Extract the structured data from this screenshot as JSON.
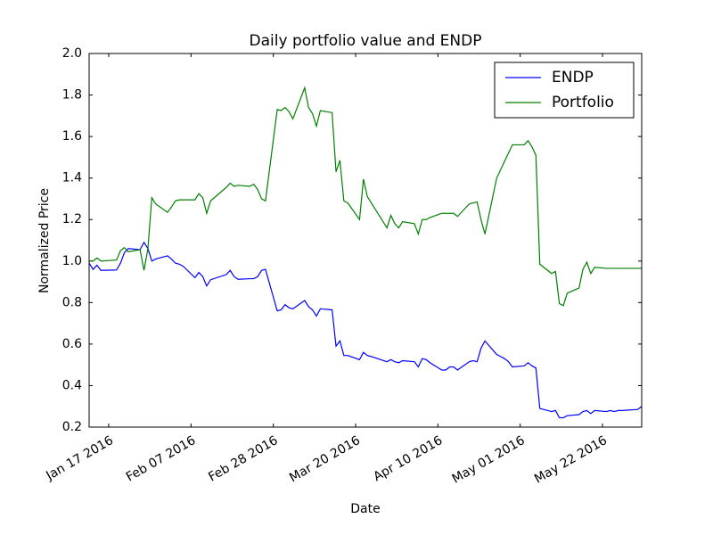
{
  "chart_data": {
    "type": "line",
    "title": "Daily portfolio value and ENDP",
    "x_label": "Date",
    "y_label": "Normalized Price",
    "x": [
      "2016-01-12",
      "2016-01-13",
      "2016-01-14",
      "2016-01-15",
      "2016-01-19",
      "2016-01-20",
      "2016-01-21",
      "2016-01-22",
      "2016-01-25",
      "2016-01-26",
      "2016-01-27",
      "2016-01-28",
      "2016-01-29",
      "2016-02-01",
      "2016-02-02",
      "2016-02-03",
      "2016-02-04",
      "2016-02-05",
      "2016-02-08",
      "2016-02-09",
      "2016-02-10",
      "2016-02-11",
      "2016-02-12",
      "2016-02-16",
      "2016-02-17",
      "2016-02-18",
      "2016-02-19",
      "2016-02-22",
      "2016-02-23",
      "2016-02-24",
      "2016-02-25",
      "2016-02-26",
      "2016-02-29",
      "2016-03-01",
      "2016-03-02",
      "2016-03-03",
      "2016-03-04",
      "2016-03-07",
      "2016-03-08",
      "2016-03-09",
      "2016-03-10",
      "2016-03-11",
      "2016-03-14",
      "2016-03-15",
      "2016-03-16",
      "2016-03-17",
      "2016-03-18",
      "2016-03-21",
      "2016-03-22",
      "2016-03-23",
      "2016-03-24",
      "2016-03-28",
      "2016-03-29",
      "2016-03-30",
      "2016-03-31",
      "2016-04-01",
      "2016-04-04",
      "2016-04-05",
      "2016-04-06",
      "2016-04-07",
      "2016-04-08",
      "2016-04-11",
      "2016-04-12",
      "2016-04-13",
      "2016-04-14",
      "2016-04-15",
      "2016-04-18",
      "2016-04-19",
      "2016-04-20",
      "2016-04-21",
      "2016-04-22",
      "2016-04-25",
      "2016-04-26",
      "2016-04-27",
      "2016-04-28",
      "2016-04-29",
      "2016-05-02",
      "2016-05-03",
      "2016-05-04",
      "2016-05-05",
      "2016-05-06",
      "2016-05-09",
      "2016-05-10",
      "2016-05-11",
      "2016-05-12",
      "2016-05-13",
      "2016-05-16",
      "2016-05-17",
      "2016-05-18",
      "2016-05-19",
      "2016-05-20",
      "2016-05-23",
      "2016-05-24",
      "2016-05-25",
      "2016-05-26",
      "2016-05-27",
      "2016-05-31",
      "2016-06-01"
    ],
    "series": [
      {
        "name": "ENDP",
        "color": "#0000ff",
        "values": [
          0.99,
          0.96,
          0.98,
          0.955,
          0.957,
          0.99,
          1.04,
          1.06,
          1.055,
          1.09,
          1.06,
          1.0,
          1.01,
          1.025,
          1.01,
          0.99,
          0.985,
          0.975,
          0.92,
          0.945,
          0.925,
          0.88,
          0.91,
          0.935,
          0.955,
          0.925,
          0.912,
          0.915,
          0.915,
          0.925,
          0.955,
          0.96,
          0.76,
          0.765,
          0.79,
          0.775,
          0.77,
          0.81,
          0.78,
          0.765,
          0.735,
          0.77,
          0.765,
          0.59,
          0.615,
          0.545,
          0.545,
          0.525,
          0.56,
          0.545,
          0.54,
          0.515,
          0.525,
          0.515,
          0.51,
          0.52,
          0.515,
          0.49,
          0.53,
          0.525,
          0.51,
          0.475,
          0.475,
          0.49,
          0.49,
          0.475,
          0.515,
          0.52,
          0.515,
          0.58,
          0.615,
          0.55,
          0.54,
          0.53,
          0.515,
          0.49,
          0.495,
          0.51,
          0.495,
          0.485,
          0.29,
          0.275,
          0.28,
          0.245,
          0.245,
          0.255,
          0.26,
          0.275,
          0.28,
          0.265,
          0.28,
          0.275,
          0.28,
          0.275,
          0.28,
          0.28,
          0.285,
          0.3
        ]
      },
      {
        "name": "Portfolio",
        "color": "#008000",
        "values": [
          1.0,
          1.0,
          1.015,
          1.0,
          1.005,
          1.05,
          1.065,
          1.045,
          1.055,
          0.955,
          1.06,
          1.305,
          1.275,
          1.235,
          1.26,
          1.29,
          1.295,
          1.295,
          1.295,
          1.325,
          1.305,
          1.23,
          1.29,
          1.355,
          1.375,
          1.36,
          1.365,
          1.36,
          1.37,
          1.345,
          1.3,
          1.29,
          1.73,
          1.725,
          1.74,
          1.72,
          1.685,
          1.835,
          1.74,
          1.71,
          1.65,
          1.725,
          1.715,
          1.43,
          1.485,
          1.29,
          1.28,
          1.2,
          1.395,
          1.31,
          1.28,
          1.16,
          1.22,
          1.18,
          1.16,
          1.19,
          1.18,
          1.13,
          1.2,
          1.2,
          1.21,
          1.23,
          1.23,
          1.23,
          1.23,
          1.215,
          1.275,
          1.28,
          1.285,
          1.2,
          1.13,
          1.4,
          1.44,
          1.48,
          1.52,
          1.56,
          1.56,
          1.58,
          1.55,
          1.51,
          0.985,
          0.94,
          0.95,
          0.795,
          0.785,
          0.845,
          0.87,
          0.96,
          0.995,
          0.94,
          0.97,
          0.965,
          0.965,
          0.965,
          0.965,
          0.965,
          0.965,
          0.965
        ]
      }
    ],
    "xlim": [
      "2016-01-12",
      "2016-06-01"
    ],
    "xticks": [
      {
        "value": "2016-01-17",
        "label": "Jan 17 2016"
      },
      {
        "value": "2016-02-07",
        "label": "Feb 07 2016"
      },
      {
        "value": "2016-02-28",
        "label": "Feb 28 2016"
      },
      {
        "value": "2016-03-20",
        "label": "Mar 20 2016"
      },
      {
        "value": "2016-04-10",
        "label": "Apr 10 2016"
      },
      {
        "value": "2016-05-01",
        "label": "May 01 2016"
      },
      {
        "value": "2016-05-22",
        "label": "May 22 2016"
      }
    ],
    "ylim": [
      0.2,
      2.0
    ],
    "yticks": [
      0.2,
      0.4,
      0.6,
      0.8,
      {
        "value": 1,
        "label": "1.0"
      },
      1.2,
      1.4,
      1.6,
      1.8,
      {
        "value": 2,
        "label": "2.0"
      }
    ],
    "legend": "upper right",
    "grid": false
  }
}
